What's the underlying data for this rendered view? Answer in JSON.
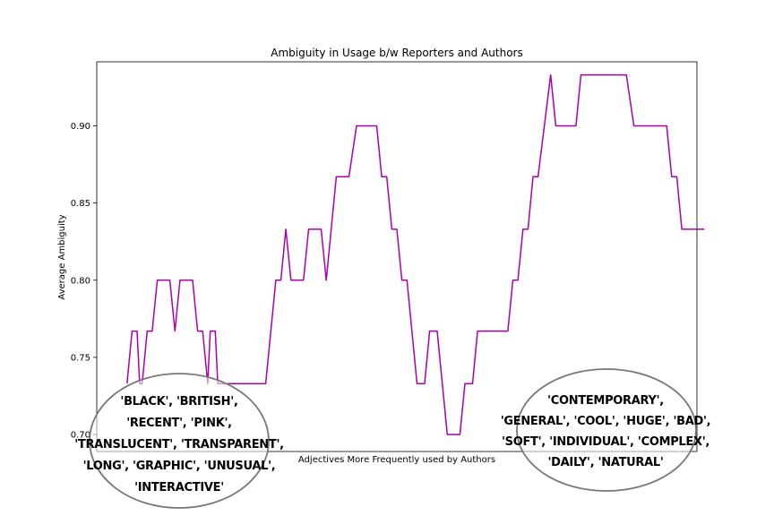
{
  "chart_data": {
    "type": "line",
    "title": "Ambiguity in Usage b/w Reporters and Authors",
    "xlabel": "Adjectives More Frequently used by Authors",
    "ylabel": "Average Ambiguity",
    "ylim": [
      0.689,
      0.9415
    ],
    "yticks": [
      "0.70",
      "0.75",
      "0.80",
      "0.85",
      "0.90"
    ],
    "ytick_values": [
      0.7,
      0.75,
      0.8,
      0.85,
      0.9
    ],
    "xlim": [
      -12,
      226
    ],
    "grid": false,
    "series": [
      {
        "color": "#aa00aa",
        "points": [
          [
            0,
            0.733
          ],
          [
            2,
            0.767
          ],
          [
            4,
            0.767
          ],
          [
            5,
            0.733
          ],
          [
            6,
            0.733
          ],
          [
            8,
            0.767
          ],
          [
            10,
            0.767
          ],
          [
            12,
            0.8
          ],
          [
            17,
            0.8
          ],
          [
            19,
            0.767
          ],
          [
            21,
            0.8
          ],
          [
            26,
            0.8
          ],
          [
            28,
            0.767
          ],
          [
            30,
            0.767
          ],
          [
            32,
            0.733
          ],
          [
            33,
            0.767
          ],
          [
            35,
            0.767
          ],
          [
            36,
            0.733
          ],
          [
            55,
            0.733
          ],
          [
            59,
            0.8
          ],
          [
            61,
            0.8
          ],
          [
            63,
            0.833
          ],
          [
            65,
            0.8
          ],
          [
            70,
            0.8
          ],
          [
            72,
            0.833
          ],
          [
            77,
            0.833
          ],
          [
            79,
            0.8
          ],
          [
            83,
            0.867
          ],
          [
            88,
            0.867
          ],
          [
            91,
            0.9
          ],
          [
            99,
            0.9
          ],
          [
            101,
            0.867
          ],
          [
            103,
            0.867
          ],
          [
            105,
            0.833
          ],
          [
            107,
            0.833
          ],
          [
            109,
            0.8
          ],
          [
            111,
            0.8
          ],
          [
            115,
            0.733
          ],
          [
            118,
            0.733
          ],
          [
            120,
            0.767
          ],
          [
            123,
            0.767
          ],
          [
            127,
            0.7
          ],
          [
            132,
            0.7
          ],
          [
            134,
            0.733
          ],
          [
            137,
            0.733
          ],
          [
            139,
            0.767
          ],
          [
            151,
            0.767
          ],
          [
            153,
            0.8
          ],
          [
            155,
            0.8
          ],
          [
            157,
            0.833
          ],
          [
            159,
            0.833
          ],
          [
            161,
            0.867
          ],
          [
            163,
            0.867
          ],
          [
            168,
            0.933
          ],
          [
            170,
            0.9
          ],
          [
            178,
            0.9
          ],
          [
            180,
            0.933
          ],
          [
            198,
            0.933
          ],
          [
            201,
            0.9
          ],
          [
            214,
            0.9
          ],
          [
            216,
            0.867
          ],
          [
            218,
            0.867
          ],
          [
            220,
            0.833
          ],
          [
            229,
            0.833
          ]
        ]
      }
    ],
    "annotations": [
      {
        "lines": [
          "'BLACK', 'BRITISH',",
          "'RECENT', 'PINK',",
          "'TRANSLUCENT', 'TRANSPARENT',",
          "'LONG', 'GRAPHIC', 'UNUSUAL',",
          "'INTERACTIVE'"
        ]
      },
      {
        "lines": [
          "'CONTEMPORARY',",
          "'GENERAL', 'COOL', 'HUGE', 'BAD',",
          "'SOFT', 'INDIVIDUAL', 'COMPLEX',",
          "'DAILY', 'NATURAL'"
        ]
      }
    ]
  }
}
